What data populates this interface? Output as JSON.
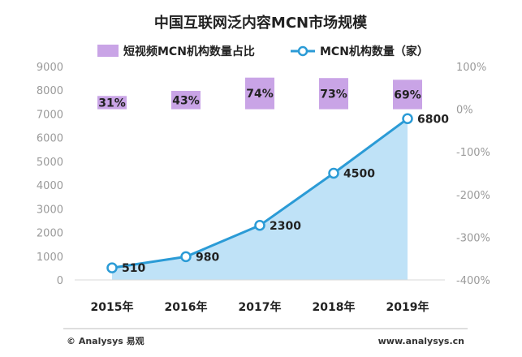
{
  "colors": {
    "bar": "#c9a4e6",
    "line": "#2b9bd6",
    "area": "#bfe2f7",
    "axis_text": "#9a9a9a",
    "text": "#222222"
  },
  "chart_data": {
    "type": "bar",
    "title": "中国互联网泛内容MCN市场规模",
    "categories": [
      "2015年",
      "2016年",
      "2017年",
      "2018年",
      "2019年"
    ],
    "series": [
      {
        "name": "短视频MCN机构数量占比",
        "type": "bar",
        "axis": "right",
        "values": [
          31,
          43,
          74,
          73,
          69
        ],
        "labels": [
          "31%",
          "43%",
          "74%",
          "73%",
          "69%"
        ]
      },
      {
        "name": "MCN机构数量（家）",
        "type": "line",
        "fill": "area",
        "axis": "left",
        "values": [
          510,
          980,
          2300,
          4500,
          6800
        ],
        "labels": [
          "510",
          "980",
          "2300",
          "4500",
          "6800"
        ]
      }
    ],
    "y_left": {
      "ylim": [
        0,
        9000
      ],
      "ticks": [
        "0",
        "1000",
        "2000",
        "3000",
        "4000",
        "5000",
        "6000",
        "7000",
        "8000",
        "9000"
      ]
    },
    "y_right": {
      "ylim": [
        -400,
        100
      ],
      "ticks": [
        "-400%",
        "-300%",
        "-200%",
        "-100%",
        "0%",
        "100%"
      ]
    },
    "grid": false,
    "legend_position": "top"
  },
  "footer": {
    "left": "© Analysys 易观",
    "right": "www.analysys.cn"
  }
}
